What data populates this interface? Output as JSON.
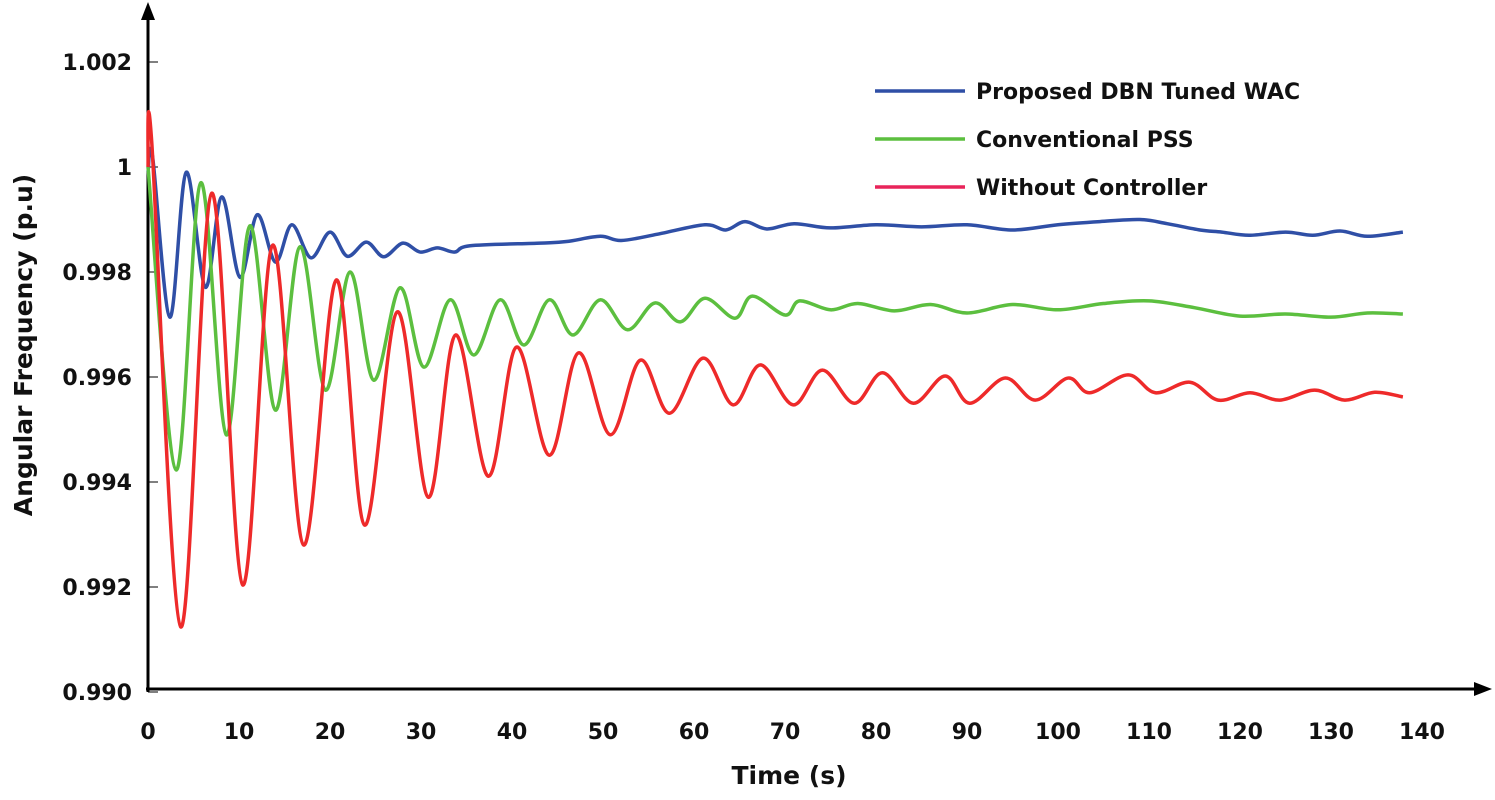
{
  "chart_data": {
    "type": "line",
    "title": "",
    "xlabel": "Time (s)",
    "ylabel": "Angular Frequency (p.u)",
    "xlim": [
      0,
      140
    ],
    "ylim": [
      0.99,
      1.003
    ],
    "xticks": [
      0,
      10,
      20,
      30,
      40,
      50,
      60,
      70,
      80,
      90,
      100,
      110,
      120,
      130,
      140
    ],
    "xtick_labels": [
      "0",
      "10",
      "20",
      "30",
      "40",
      "50",
      "60",
      "70",
      "80",
      "90",
      "100",
      "110",
      "120",
      "130",
      "140"
    ],
    "yticks": [
      0.99,
      0.992,
      0.994,
      0.996,
      0.998,
      1.0,
      1.002
    ],
    "ytick_labels": [
      "0.990",
      "0.992",
      "0.994",
      "0.996",
      "0.998",
      "1",
      "1.002"
    ],
    "grid": false,
    "legend_position": "top-right",
    "series": [
      {
        "name": "Proposed DBN Tuned WAC",
        "color": "#2f4fa6",
        "points": [
          [
            0,
            0.9999
          ],
          [
            0.5,
            1.0002
          ],
          [
            2.4,
            0.99714
          ],
          [
            4.2,
            0.9999
          ],
          [
            6.3,
            0.99771
          ],
          [
            8.1,
            0.99943
          ],
          [
            10.1,
            0.9979
          ],
          [
            12.0,
            0.99909
          ],
          [
            14.0,
            0.99819
          ],
          [
            15.8,
            0.9989
          ],
          [
            17.9,
            0.99827
          ],
          [
            20.0,
            0.99876
          ],
          [
            21.9,
            0.9983
          ],
          [
            24.0,
            0.99857
          ],
          [
            25.9,
            0.99829
          ],
          [
            28.0,
            0.99855
          ],
          [
            29.9,
            0.99838
          ],
          [
            31.8,
            0.99846
          ],
          [
            33.7,
            0.99838
          ],
          [
            35.4,
            0.9985
          ],
          [
            43.1,
            0.99855
          ],
          [
            46,
            0.99858
          ],
          [
            49.7,
            0.99868
          ],
          [
            52,
            0.9986
          ],
          [
            56,
            0.99872
          ],
          [
            61.2,
            0.9989
          ],
          [
            63.5,
            0.9988
          ],
          [
            65.6,
            0.99896
          ],
          [
            68,
            0.99882
          ],
          [
            71,
            0.99892
          ],
          [
            75,
            0.99884
          ],
          [
            80,
            0.9989
          ],
          [
            85,
            0.99886
          ],
          [
            90,
            0.9989
          ],
          [
            95,
            0.9988
          ],
          [
            100,
            0.9989
          ],
          [
            104.6,
            0.99896
          ],
          [
            109,
            0.999
          ],
          [
            112,
            0.99892
          ],
          [
            115.6,
            0.9988
          ],
          [
            118,
            0.99876
          ],
          [
            121,
            0.9987
          ],
          [
            125,
            0.99876
          ],
          [
            128,
            0.9987
          ],
          [
            131,
            0.99878
          ],
          [
            134,
            0.99868
          ],
          [
            137.9,
            0.99876
          ]
        ]
      },
      {
        "name": "Conventional PSS",
        "color": "#5cbf3f",
        "points": [
          [
            0,
            1.0
          ],
          [
            3.1,
            0.99423
          ],
          [
            5.8,
            0.9997
          ],
          [
            8.6,
            0.9949
          ],
          [
            11.2,
            0.99888
          ],
          [
            14.0,
            0.99537
          ],
          [
            16.7,
            0.99848
          ],
          [
            19.5,
            0.99575
          ],
          [
            22.2,
            0.998
          ],
          [
            24.8,
            0.99594
          ],
          [
            27.7,
            0.9977
          ],
          [
            30.3,
            0.99619
          ],
          [
            33.2,
            0.99747
          ],
          [
            35.8,
            0.99642
          ],
          [
            38.7,
            0.99747
          ],
          [
            41.3,
            0.99661
          ],
          [
            44.1,
            0.99747
          ],
          [
            46.7,
            0.9968
          ],
          [
            49.7,
            0.99747
          ],
          [
            52.7,
            0.9969
          ],
          [
            55.7,
            0.99741
          ],
          [
            58.5,
            0.99705
          ],
          [
            61.2,
            0.9975
          ],
          [
            64.5,
            0.99712
          ],
          [
            66.4,
            0.99754
          ],
          [
            70.0,
            0.99718
          ],
          [
            71.6,
            0.99745
          ],
          [
            75,
            0.99728
          ],
          [
            78,
            0.9974
          ],
          [
            82,
            0.99726
          ],
          [
            86,
            0.99738
          ],
          [
            90,
            0.99722
          ],
          [
            95,
            0.99738
          ],
          [
            100,
            0.99728
          ],
          [
            105,
            0.9974
          ],
          [
            110,
            0.99745
          ],
          [
            115,
            0.99732
          ],
          [
            120,
            0.99716
          ],
          [
            125,
            0.9972
          ],
          [
            130,
            0.99714
          ],
          [
            134,
            0.99722
          ],
          [
            137.9,
            0.9972
          ]
        ]
      },
      {
        "name": "Without Controller",
        "color": "#ee2a2a",
        "points": [
          [
            0,
            1.0
          ],
          [
            0.4,
            1.0005
          ],
          [
            3.6,
            0.99124
          ],
          [
            7.0,
            0.9995
          ],
          [
            10.4,
            0.99204
          ],
          [
            13.7,
            0.99851
          ],
          [
            17.1,
            0.9928
          ],
          [
            20.7,
            0.99785
          ],
          [
            23.8,
            0.99318
          ],
          [
            27.4,
            0.99724
          ],
          [
            30.8,
            0.99371
          ],
          [
            33.8,
            0.9968
          ],
          [
            37.4,
            0.99411
          ],
          [
            40.5,
            0.99657
          ],
          [
            44.1,
            0.99451
          ],
          [
            47.3,
            0.99646
          ],
          [
            50.8,
            0.9949
          ],
          [
            54.1,
            0.99632
          ],
          [
            57.3,
            0.99531
          ],
          [
            61.0,
            0.99636
          ],
          [
            64.3,
            0.99547
          ],
          [
            67.3,
            0.99623
          ],
          [
            70.9,
            0.99547
          ],
          [
            74.1,
            0.99613
          ],
          [
            77.6,
            0.9955
          ],
          [
            80.7,
            0.99608
          ],
          [
            84.1,
            0.9955
          ],
          [
            87.6,
            0.99602
          ],
          [
            90.3,
            0.9955
          ],
          [
            94.2,
            0.99598
          ],
          [
            97.5,
            0.99556
          ],
          [
            101.1,
            0.99598
          ],
          [
            103.5,
            0.9957
          ],
          [
            107.7,
            0.99604
          ],
          [
            110.7,
            0.9957
          ],
          [
            114.5,
            0.9959
          ],
          [
            117.6,
            0.99556
          ],
          [
            121.1,
            0.9957
          ],
          [
            124.4,
            0.99556
          ],
          [
            128.2,
            0.99575
          ],
          [
            131.5,
            0.99556
          ],
          [
            134.8,
            0.99571
          ],
          [
            137.9,
            0.99562
          ]
        ]
      }
    ],
    "legend_line_colors": [
      "#2f4fa6",
      "#5cbf3f",
      "#e8245a"
    ]
  }
}
